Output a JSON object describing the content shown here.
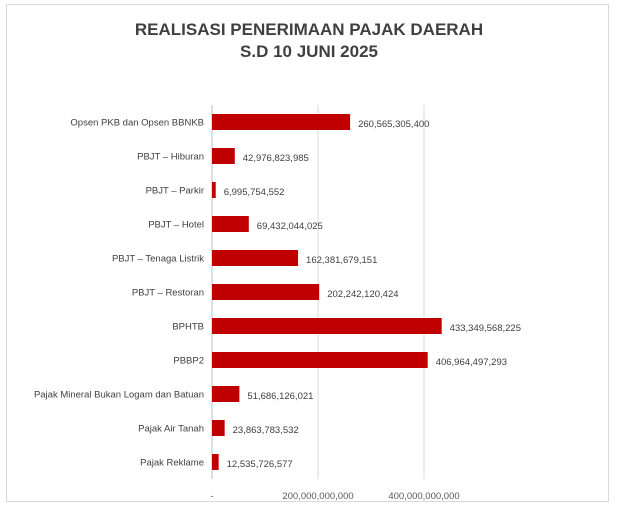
{
  "chart_data": {
    "type": "bar",
    "orientation": "horizontal",
    "title": "REALISASI PENERIMAAN PAJAK DAERAH",
    "subtitle": "S.D 10 JUNI 2025",
    "categories": [
      "Opsen PKB dan Opsen BBNKB",
      "PBJT – Hiburan",
      "PBJT – Parkir",
      "PBJT – Hotel",
      "PBJT – Tenaga Listrik",
      "PBJT – Restoran",
      "BPHTB",
      "PBBP2",
      "Pajak Mineral Bukan Logam dan Batuan",
      "Pajak Air Tanah",
      "Pajak Reklame"
    ],
    "values": [
      260565305400,
      42976823985,
      6995754552,
      69432044025,
      162381679151,
      202242120424,
      433349568225,
      406964497293,
      51686126021,
      23863783532,
      12535726577
    ],
    "value_labels": [
      "260,565,305,400",
      "42,976,823,985",
      "6,995,754,552",
      "69,432,044,025",
      "162,381,679,151",
      "202,242,120,424",
      "433,349,568,225",
      "406,964,497,293",
      "51,686,126,021",
      "23,863,783,532",
      "12,535,726,577"
    ],
    "x_ticks": [
      0,
      200000000000,
      400000000000
    ],
    "x_tick_labels": [
      "-",
      "200,000,000,000",
      "400,000,000,000"
    ],
    "xlim": [
      0,
      450000000000
    ],
    "grid": true,
    "bar_color": "#c00000",
    "xlabel": "",
    "ylabel": ""
  }
}
